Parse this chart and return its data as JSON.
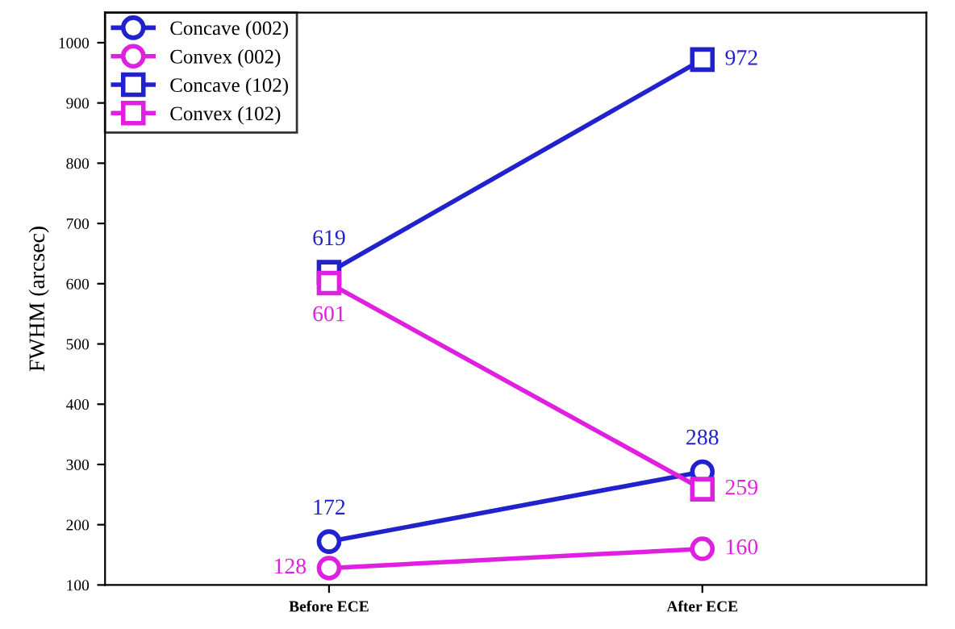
{
  "chart_data": {
    "type": "line",
    "ylabel": "FWHM (arcsec)",
    "categories": [
      "Before ECE",
      "After ECE"
    ],
    "series": [
      {
        "name": "Concave (002)",
        "color": "#2222cc",
        "values": [
          172,
          288
        ],
        "marker": "circle"
      },
      {
        "name": "Convex (002)",
        "color": "#e020e0",
        "values": [
          128,
          160
        ],
        "marker": "circle"
      },
      {
        "name": "Concave (102)",
        "color": "#2222cc",
        "values": [
          619,
          972
        ],
        "marker": "square"
      },
      {
        "name": "Convex (102)",
        "color": "#e020e0",
        "values": [
          601,
          259
        ],
        "marker": "square"
      }
    ],
    "ylim": [
      100,
      1050
    ],
    "yticks": [
      100,
      200,
      300,
      400,
      500,
      600,
      700,
      800,
      900,
      1000
    ],
    "data_labels": true,
    "legend": "top left",
    "grid": false,
    "line_style": "solid"
  }
}
